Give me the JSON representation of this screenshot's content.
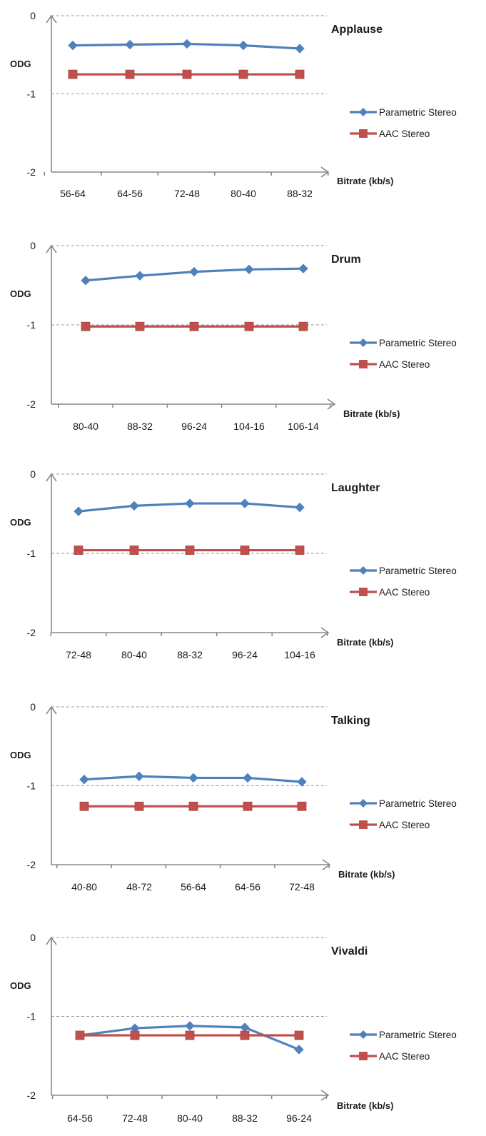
{
  "chart_data": [
    {
      "type": "line",
      "title": "Applause",
      "ylabel": "ODG",
      "xlabel": "Bitrate (kb/s)",
      "categories": [
        "56-64",
        "64-56",
        "72-48",
        "80-40",
        "88-32"
      ],
      "ylim": [
        -2,
        0
      ],
      "yticks": [
        "0",
        "-1",
        "-2"
      ],
      "grid": "horizontal dashed at 0 and -1",
      "legend_position": "right",
      "series": [
        {
          "name": "Parametric Stereo",
          "color": "#4F81BD",
          "marker": "diamond",
          "values": [
            -0.38,
            -0.37,
            -0.36,
            -0.38,
            -0.42
          ]
        },
        {
          "name": "AAC Stereo",
          "color": "#C0504D",
          "marker": "square",
          "values": [
            -0.75,
            -0.75,
            -0.75,
            -0.75,
            -0.75
          ]
        }
      ]
    },
    {
      "type": "line",
      "title": "Drum",
      "ylabel": "ODG",
      "xlabel": "Bitrate (kb/s)",
      "categories": [
        "80-40",
        "88-32",
        "96-24",
        "104-16",
        "106-14"
      ],
      "ylim": [
        -2,
        0
      ],
      "yticks": [
        "0",
        "-1",
        "-2"
      ],
      "grid": "horizontal dashed at 0 and -1",
      "legend_position": "right",
      "series": [
        {
          "name": "Parametric Stereo",
          "color": "#4F81BD",
          "marker": "diamond",
          "values": [
            -0.44,
            -0.38,
            -0.33,
            -0.3,
            -0.29
          ]
        },
        {
          "name": "AAC Stereo",
          "color": "#C0504D",
          "marker": "square",
          "values": [
            -1.02,
            -1.02,
            -1.02,
            -1.02,
            -1.02
          ]
        }
      ]
    },
    {
      "type": "line",
      "title": "Laughter",
      "ylabel": "ODG",
      "xlabel": "Bitrate (kb/s)",
      "categories": [
        "72-48",
        "80-40",
        "88-32",
        "96-24",
        "104-16"
      ],
      "ylim": [
        -2,
        0
      ],
      "yticks": [
        "0",
        "-1",
        "-2"
      ],
      "grid": "horizontal dashed at 0 and -1",
      "legend_position": "right",
      "series": [
        {
          "name": "Parametric Stereo",
          "color": "#4F81BD",
          "marker": "diamond",
          "values": [
            -0.47,
            -0.4,
            -0.37,
            -0.37,
            -0.42
          ]
        },
        {
          "name": "AAC Stereo",
          "color": "#C0504D",
          "marker": "square",
          "values": [
            -0.96,
            -0.96,
            -0.96,
            -0.96,
            -0.96
          ]
        }
      ]
    },
    {
      "type": "line",
      "title": "Talking",
      "ylabel": "ODG",
      "xlabel": "Bitrate (kb/s)",
      "categories": [
        "40-80",
        "48-72",
        "56-64",
        "64-56",
        "72-48"
      ],
      "ylim": [
        -2,
        0
      ],
      "yticks": [
        "0",
        "-1",
        "-2"
      ],
      "grid": "horizontal dashed at 0 and -1",
      "legend_position": "right",
      "series": [
        {
          "name": "Parametric Stereo",
          "color": "#4F81BD",
          "marker": "diamond",
          "values": [
            -0.92,
            -0.88,
            -0.9,
            -0.9,
            -0.95
          ]
        },
        {
          "name": "AAC Stereo",
          "color": "#C0504D",
          "marker": "square",
          "values": [
            -1.26,
            -1.26,
            -1.26,
            -1.26,
            -1.26
          ]
        }
      ]
    },
    {
      "type": "line",
      "title": "Vivaldi",
      "ylabel": "ODG",
      "xlabel": "Bitrate (kb/s)",
      "categories": [
        "64-56",
        "72-48",
        "80-40",
        "88-32",
        "96-24"
      ],
      "ylim": [
        -2,
        0
      ],
      "yticks": [
        "0",
        "-1",
        "-2"
      ],
      "grid": "horizontal dashed at 0 and -1",
      "legend_position": "right",
      "series": [
        {
          "name": "Parametric Stereo",
          "color": "#4F81BD",
          "marker": "diamond",
          "values": [
            -1.24,
            -1.15,
            -1.12,
            -1.14,
            -1.42
          ]
        },
        {
          "name": "AAC Stereo",
          "color": "#C0504D",
          "marker": "square",
          "values": [
            -1.24,
            -1.24,
            -1.24,
            -1.24,
            -1.24
          ]
        }
      ]
    }
  ]
}
